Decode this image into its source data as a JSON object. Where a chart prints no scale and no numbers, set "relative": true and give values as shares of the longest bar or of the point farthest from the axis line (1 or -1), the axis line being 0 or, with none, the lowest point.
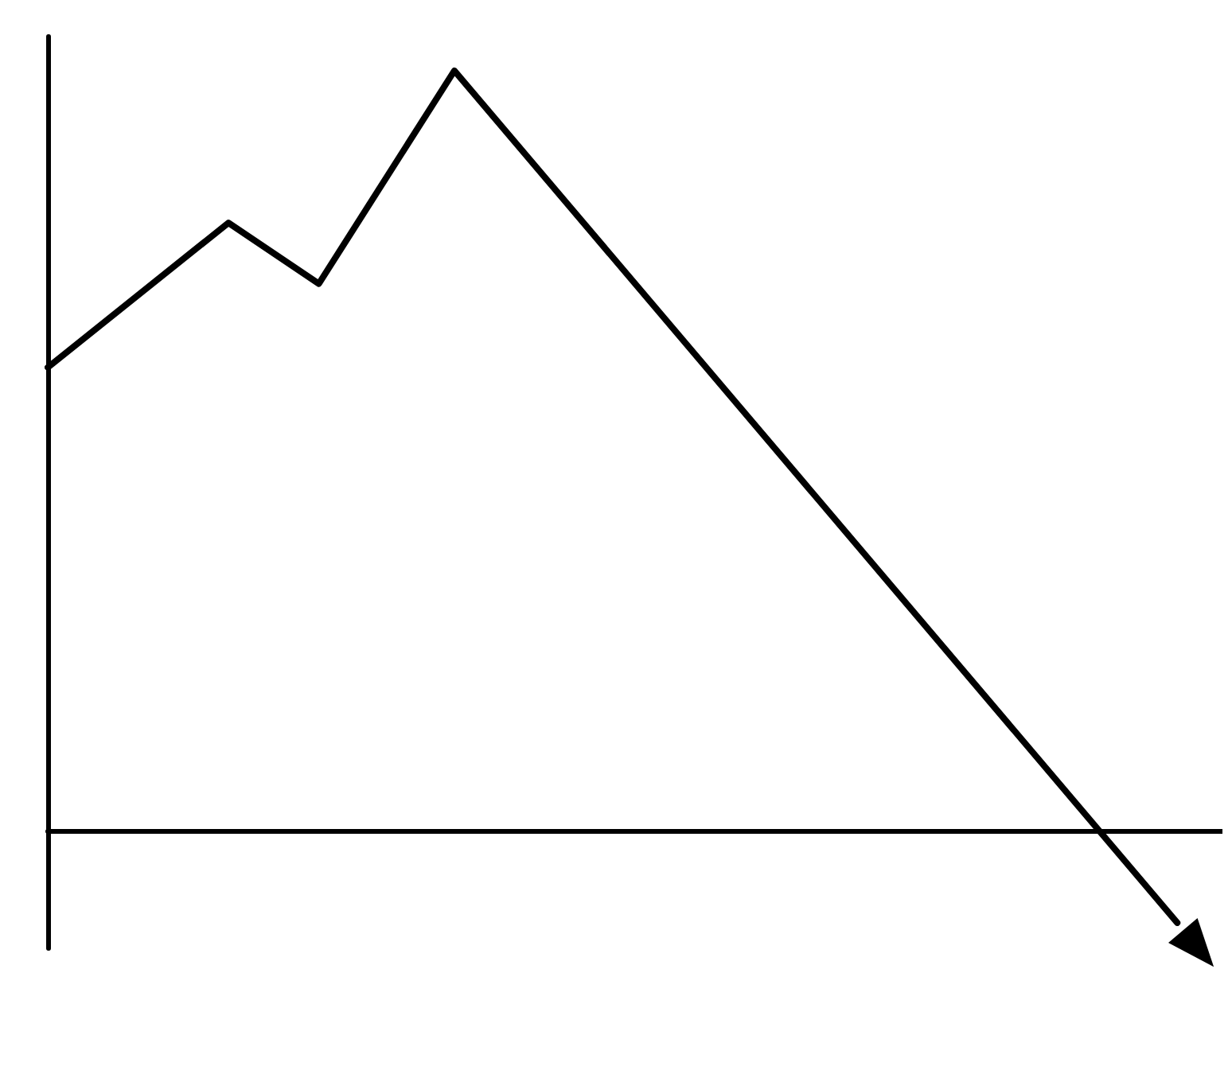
{
  "chart_data": {
    "type": "line",
    "relative": true,
    "categories": [
      null,
      null,
      null,
      null,
      null,
      null,
      null,
      null,
      null,
      null,
      null,
      null,
      null,
      null,
      null,
      null,
      null,
      null,
      null,
      null,
      null,
      null,
      null,
      null,
      null,
      null,
      null
    ],
    "tick_labels": false,
    "grid": false,
    "marker": "none",
    "line_style": "solid",
    "series": [
      {
        "color": "#000000",
        "values": [
          0.61,
          null,
          null,
          null,
          0.8,
          null,
          0.72,
          null,
          null,
          1,
          null,
          null,
          null,
          null,
          null,
          null,
          null,
          null,
          null,
          null,
          null,
          null,
          null,
          null,
          null,
          -0.12,
          null
        ]
      }
    ]
  }
}
